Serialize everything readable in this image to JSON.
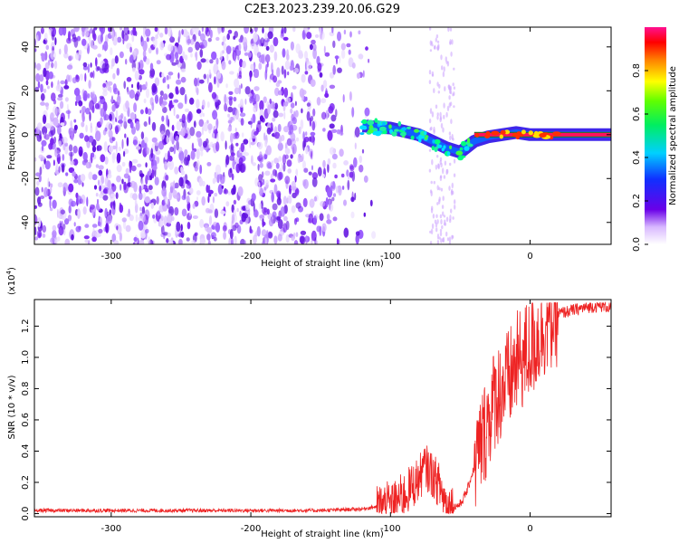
{
  "title": "C2E3.2023.239.20.06.G29",
  "chart_data": [
    {
      "type": "heatmap",
      "xlabel": "Height of straight line (km)",
      "ylabel": "Frequency (Hz)",
      "xlim": [
        -355,
        58
      ],
      "ylim": [
        -50,
        49
      ],
      "xticks": [
        -300,
        -200,
        -100,
        0
      ],
      "xtick_labels": [
        "-300",
        "-200",
        "-100",
        "0"
      ],
      "yticks": [
        -40,
        -20,
        0,
        20,
        40
      ],
      "ytick_labels": [
        "-40",
        "-20",
        "0",
        "20",
        "40"
      ],
      "colorbar": {
        "label": "Normalized spectral amplitude",
        "range": [
          0,
          1
        ],
        "ticks": [
          0.0,
          0.2,
          0.4,
          0.6,
          0.8
        ],
        "tick_labels": [
          "0.0",
          "0.2",
          "0.4",
          "0.6",
          "0.8"
        ],
        "colormap": "rainbow (white-violet-blue-cyan-green-yellow-red-magenta)"
      },
      "ridge": [
        {
          "x": -120,
          "y": 4
        },
        {
          "x": -100,
          "y": 3
        },
        {
          "x": -80,
          "y": 0
        },
        {
          "x": -60,
          "y": -6
        },
        {
          "x": -50,
          "y": -8
        },
        {
          "x": -40,
          "y": -3
        },
        {
          "x": -30,
          "y": -1
        },
        {
          "x": -10,
          "y": 1
        },
        {
          "x": 0,
          "y": 0
        },
        {
          "x": 58,
          "y": 0
        }
      ],
      "noise_region": {
        "x_from": -355,
        "x_to": -120
      },
      "grid": false
    },
    {
      "type": "line",
      "xlabel": "Height of straight line (km)",
      "ylabel": "SNR (10 * v/v)",
      "multiplier_label": "(x10",
      "multiplier_exp": "4",
      "multiplier_close": ")",
      "xlim": [
        -355,
        58
      ],
      "ylim": [
        -0.02,
        1.37
      ],
      "xticks": [
        -300,
        -200,
        -100,
        0
      ],
      "xtick_labels": [
        "-300",
        "-200",
        "-100",
        "0"
      ],
      "yticks": [
        0.0,
        0.2,
        0.4,
        0.6,
        0.8,
        1.0,
        1.2
      ],
      "ytick_labels": [
        "0.0",
        "0.2",
        "0.4",
        "0.6",
        "0.8",
        "1.0",
        "1.2"
      ],
      "color": "#ee2222",
      "grid": false,
      "series": [
        {
          "x": [
            -355,
            -300,
            -250,
            -200,
            -150,
            -120,
            -100,
            -90,
            -80,
            -75,
            -70,
            -65,
            -60,
            -55,
            -50,
            -45,
            -40,
            -35,
            -30,
            -25,
            -20,
            -15,
            -10,
            -5,
            0,
            5,
            10,
            15,
            20,
            30,
            40,
            50,
            58
          ],
          "y": [
            0.02,
            0.02,
            0.02,
            0.02,
            0.02,
            0.03,
            0.06,
            0.12,
            0.22,
            0.3,
            0.25,
            0.18,
            0.06,
            0.04,
            0.06,
            0.15,
            0.3,
            0.45,
            0.6,
            0.75,
            0.8,
            0.85,
            0.95,
            1.0,
            1.05,
            1.12,
            1.2,
            1.25,
            1.28,
            1.3,
            1.32,
            1.33,
            1.32
          ]
        }
      ]
    }
  ]
}
